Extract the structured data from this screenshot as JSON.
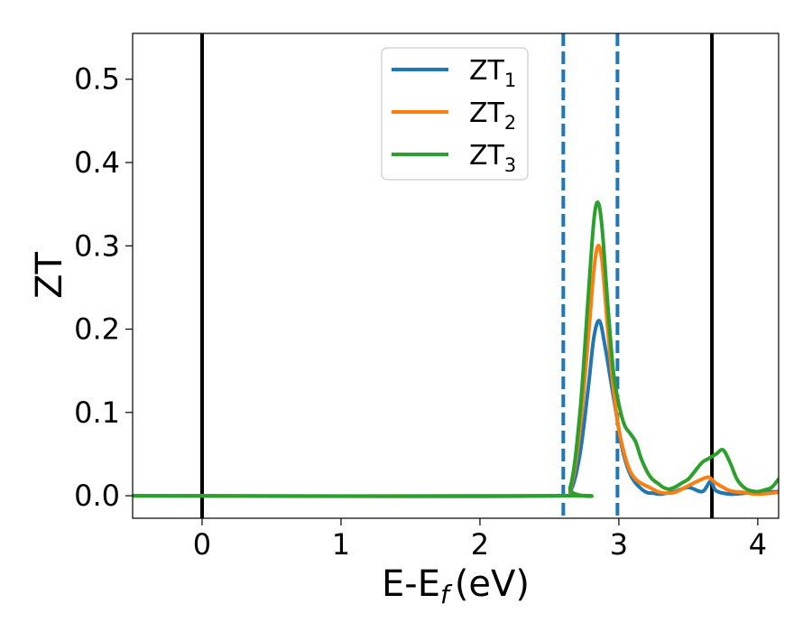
{
  "chart_data": {
    "type": "line",
    "title": "",
    "xlabel": "E-E",
    "xlabel_sub": "f",
    "xlabel_unit": "(eV)",
    "ylabel": "ZT",
    "xlim": [
      -0.5,
      4.15
    ],
    "ylim": [
      -0.027,
      0.555
    ],
    "xticks": [
      0,
      1,
      2,
      3,
      4
    ],
    "xtick_labels": [
      "0",
      "1",
      "2",
      "3",
      "4"
    ],
    "yticks": [
      0.0,
      0.1,
      0.2,
      0.3,
      0.4,
      0.5
    ],
    "ytick_labels": [
      "0.0",
      "0.1",
      "0.2",
      "0.3",
      "0.4",
      "0.5"
    ],
    "grid": false,
    "legend": "top-center",
    "vlines_solid": [
      0.0,
      3.67
    ],
    "vlines_dashed": [
      2.6,
      2.99
    ],
    "vline_solid_color": "#000000",
    "vline_dashed_color": "#1f77b4",
    "series": [
      {
        "name": "ZT",
        "name_sub": "1",
        "color": "#1f77b4",
        "x": [
          -0.5,
          2.55,
          2.65,
          2.72,
          2.78,
          2.82,
          2.86,
          2.9,
          2.94,
          2.98,
          3.02,
          3.06,
          3.1,
          3.15,
          3.2,
          3.25,
          3.3,
          3.4,
          3.5,
          3.6,
          3.66,
          3.7,
          3.8,
          3.9,
          4.0,
          4.15
        ],
        "y": [
          0,
          0,
          0.005,
          0.05,
          0.13,
          0.19,
          0.21,
          0.18,
          0.14,
          0.1,
          0.06,
          0.035,
          0.02,
          0.01,
          0.004,
          0.003,
          0.002,
          0.005,
          0.01,
          0.005,
          0.017,
          0.006,
          0.002,
          0.003,
          0.004,
          0.005
        ]
      },
      {
        "name": "ZT",
        "name_sub": "2",
        "color": "#ff7f0e",
        "x": [
          -0.5,
          2.55,
          2.65,
          2.72,
          2.78,
          2.82,
          2.85,
          2.88,
          2.92,
          2.96,
          3.0,
          3.04,
          3.08,
          3.12,
          3.16,
          3.22,
          3.3,
          3.4,
          3.5,
          3.6,
          3.65,
          3.7,
          3.8,
          3.9,
          4.0,
          4.15
        ],
        "y": [
          0,
          0,
          0.008,
          0.08,
          0.19,
          0.27,
          0.3,
          0.28,
          0.2,
          0.13,
          0.08,
          0.05,
          0.03,
          0.02,
          0.015,
          0.01,
          0.004,
          0.004,
          0.012,
          0.02,
          0.022,
          0.015,
          0.006,
          0.004,
          0.002,
          0.004
        ]
      },
      {
        "name": "ZT",
        "name_sub": "3",
        "color": "#2ca02c",
        "x": [
          -0.5,
          2.55,
          2.65,
          2.72,
          2.78,
          2.82,
          2.85,
          2.88,
          2.92,
          2.96,
          3.0,
          3.04,
          3.08,
          3.12,
          3.16,
          3.2,
          3.24,
          3.28,
          3.32,
          3.36,
          3.4,
          3.45,
          3.5,
          3.55,
          3.6,
          3.65,
          3.7,
          3.75,
          3.8,
          3.85,
          3.9,
          3.95,
          4.0,
          4.05,
          4.1,
          4.15
        ],
        "y": [
          0,
          0,
          0.01,
          0.1,
          0.24,
          0.33,
          0.352,
          0.32,
          0.23,
          0.15,
          0.11,
          0.085,
          0.075,
          0.065,
          0.045,
          0.03,
          0.02,
          0.015,
          0.01,
          0.008,
          0.01,
          0.015,
          0.02,
          0.03,
          0.04,
          0.045,
          0.05,
          0.055,
          0.04,
          0.02,
          0.01,
          0.006,
          0.005,
          0.007,
          0.01,
          0.02
        ]
      }
    ]
  }
}
